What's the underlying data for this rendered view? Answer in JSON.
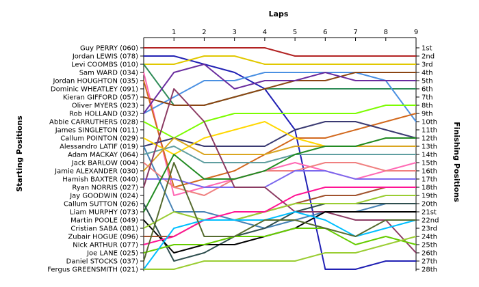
{
  "chart_data": {
    "type": "line",
    "title": "Laps",
    "ylabel_left": "Starting Positions",
    "ylabel_right": "Finishing Positions",
    "x": [
      0,
      1,
      2,
      3,
      4,
      5,
      6,
      7,
      8,
      9
    ],
    "x_tick_labels": [
      "1",
      "2",
      "3",
      "4",
      "5",
      "6",
      "7",
      "8",
      "9"
    ],
    "starting_labels": [
      "Guy PERRY (060)",
      "Jordan LEWIS (078)",
      "Levi COOMBS (010)",
      "Sam WARD (034)",
      "Jordan HOUGHTON (035)",
      "Dominic WHEATLEY (091)",
      "Kieran GIFFORD (057)",
      "Oliver MYERS (023)",
      "Rob HOLLAND (032)",
      "Abbie CARRUTHERS (028)",
      "James SINGLETON (011)",
      "Callum POINTON (029)",
      "Alessandro LATIF (019)",
      "Adam MACKAY (064)",
      "Jack BARLOW (004)",
      "Jamie ALEXANDER (030)",
      "Hamish BAXTER (040)",
      "Ryan NORRIS (027)",
      "Jay GOODWIN (024)",
      "Callum SUTTON (026)",
      "Liam MURPHY (073)",
      "Martin POOLE (049)",
      "Cristian SABA (081)",
      "Zubair HOGUE (096)",
      "Nick ARTHUR (077)",
      "Joe LANE (025)",
      "Daniel STOCKS (037)",
      "Fergus GREENSMITH (021)"
    ],
    "finishing_labels": [
      "1st",
      "2nd",
      "3rd",
      "4th",
      "5th",
      "6th",
      "7th",
      "8th",
      "9th",
      "10th",
      "11th",
      "12th",
      "13th",
      "14th",
      "15th",
      "16th",
      "17th",
      "18th",
      "19th",
      "20th",
      "21st",
      "22nd",
      "23rd",
      "24th",
      "25th",
      "26th",
      "27th",
      "28th"
    ],
    "y_range": [
      1,
      28
    ],
    "series": [
      {
        "color": "#b22222",
        "positions": [
          1,
          1,
          1,
          1,
          1,
          2,
          2,
          2,
          2,
          2
        ]
      },
      {
        "color": "#2121b4",
        "positions": [
          2,
          2,
          3,
          4,
          6,
          11,
          28,
          28,
          27,
          27
        ]
      },
      {
        "color": "#e1c800",
        "positions": [
          3,
          3,
          2,
          2,
          3,
          3,
          3,
          3,
          3,
          3
        ]
      },
      {
        "color": "#ff69b4",
        "positions": [
          4,
          19,
          18,
          17,
          16,
          15,
          16,
          17,
          16,
          15
        ]
      },
      {
        "color": "#2e8b57",
        "positions": [
          3,
          8,
          8,
          7,
          6,
          6,
          6,
          6,
          6,
          6
        ]
      },
      {
        "color": "#4a90e2",
        "positions": [
          9,
          7,
          5,
          5,
          4,
          4,
          4,
          4,
          5,
          10
        ]
      },
      {
        "color": "#8b4513",
        "positions": [
          7,
          8,
          8,
          7,
          6,
          5,
          5,
          4,
          4,
          4
        ]
      },
      {
        "color": "#d2691e",
        "positions": [
          5,
          18,
          17,
          16,
          14,
          12,
          12,
          11,
          10,
          9
        ]
      },
      {
        "color": "#6a2d9f",
        "positions": [
          9,
          4,
          3,
          6,
          5,
          5,
          4,
          5,
          5,
          5
        ]
      },
      {
        "color": "#7cfc00",
        "positions": [
          10,
          12,
          10,
          9,
          9,
          9,
          9,
          9,
          8,
          8
        ]
      },
      {
        "color": "#3a3a72",
        "positions": [
          13,
          12,
          13,
          13,
          13,
          11,
          10,
          10,
          11,
          12
        ]
      },
      {
        "color": "#ffd700",
        "positions": [
          12,
          14,
          12,
          11,
          10,
          12,
          13,
          13,
          13,
          13
        ]
      },
      {
        "color": "#4682b4",
        "positions": [
          13,
          21,
          21,
          22,
          23,
          22,
          21,
          21,
          20,
          20
        ]
      },
      {
        "color": "#5f9ea0",
        "positions": [
          14,
          13,
          15,
          15,
          15,
          14,
          14,
          14,
          14,
          14
        ]
      },
      {
        "color": "#daa520",
        "positions": [
          16,
          12,
          14,
          14,
          14,
          13,
          13,
          13,
          13,
          13
        ]
      },
      {
        "color": "#f08080",
        "positions": [
          15,
          18,
          19,
          17,
          16,
          16,
          15,
          15,
          16,
          16
        ]
      },
      {
        "color": "#7b68ee",
        "positions": [
          17,
          17,
          18,
          18,
          18,
          16,
          16,
          17,
          17,
          17
        ]
      },
      {
        "color": "#8b3a62",
        "positions": [
          18,
          6,
          10,
          18,
          18,
          21,
          21,
          22,
          22,
          26
        ]
      },
      {
        "color": "#228b22",
        "positions": [
          21,
          14,
          17,
          17,
          16,
          14,
          13,
          13,
          12,
          12
        ]
      },
      {
        "color": "#2f4f4f",
        "positions": [
          20,
          27,
          26,
          24,
          23,
          21,
          20,
          20,
          20,
          20
        ]
      },
      {
        "color": "#000000",
        "positions": [
          22,
          26,
          25,
          25,
          24,
          23,
          21,
          21,
          21,
          21
        ]
      },
      {
        "color": "#a0522d",
        "positions": [
          24,
          24,
          22,
          22,
          21,
          20,
          19,
          19,
          18,
          18
        ]
      },
      {
        "color": "#9acd32",
        "positions": [
          23,
          21,
          22,
          22,
          21,
          20,
          20,
          20,
          19,
          19
        ]
      },
      {
        "color": "#ff1493",
        "positions": [
          25,
          24,
          22,
          21,
          21,
          19,
          18,
          18,
          18,
          18
        ]
      },
      {
        "color": "#66cc00",
        "positions": [
          26,
          25,
          25,
          24,
          24,
          23,
          23,
          25,
          24,
          25
        ]
      },
      {
        "color": "#00bfff",
        "positions": [
          28,
          23,
          22,
          22,
          22,
          21,
          22,
          24,
          23,
          22
        ]
      },
      {
        "color": "#556b2f",
        "positions": [
          27,
          15,
          24,
          24,
          22,
          22,
          23,
          24,
          22,
          22
        ]
      },
      {
        "color": "#9acd32",
        "positions": [
          28,
          28,
          27,
          27,
          27,
          27,
          26,
          26,
          25,
          24
        ]
      }
    ]
  }
}
